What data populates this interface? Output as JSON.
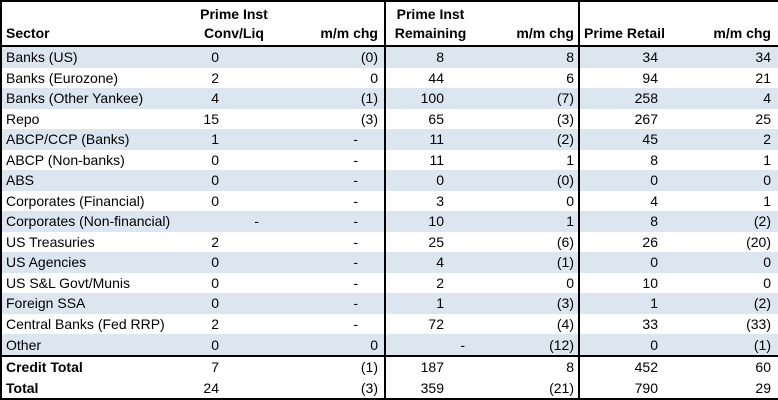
{
  "colors": {
    "stripe": "#dce6f1",
    "border": "#000000",
    "text": "#000000"
  },
  "table": {
    "columns": [
      {
        "id": "sector",
        "line1": "",
        "line2": "Sector"
      },
      {
        "id": "conv_liq",
        "line1": "Prime Inst",
        "line2": "Conv/Liq"
      },
      {
        "id": "conv_liq_chg",
        "line1": "",
        "line2": "m/m chg"
      },
      {
        "id": "remaining",
        "line1": "Prime Inst",
        "line2": "Remaining"
      },
      {
        "id": "remaining_chg",
        "line1": "",
        "line2": "m/m chg"
      },
      {
        "id": "retail",
        "line1": "",
        "line2": "Prime Retail"
      },
      {
        "id": "retail_chg",
        "line1": "",
        "line2": "m/m chg"
      }
    ],
    "rows": [
      {
        "sector": "Banks (US)",
        "values": [
          "0",
          "(0)",
          "8",
          "8",
          "34",
          "34"
        ],
        "stripe": true,
        "bold": false,
        "section_top": false
      },
      {
        "sector": "Banks (Eurozone)",
        "values": [
          "2",
          "0",
          "44",
          "6",
          "94",
          "21"
        ],
        "stripe": false,
        "bold": false,
        "section_top": false
      },
      {
        "sector": "Banks (Other Yankee)",
        "values": [
          "4",
          "(1)",
          "100",
          "(7)",
          "258",
          "4"
        ],
        "stripe": true,
        "bold": false,
        "section_top": false
      },
      {
        "sector": "Repo",
        "values": [
          "15",
          "(3)",
          "65",
          "(3)",
          "267",
          "25"
        ],
        "stripe": false,
        "bold": false,
        "section_top": false
      },
      {
        "sector": "ABCP/CCP (Banks)",
        "values": [
          "1",
          "-",
          "11",
          "(2)",
          "45",
          "2"
        ],
        "stripe": true,
        "bold": false,
        "section_top": false
      },
      {
        "sector": "ABCP (Non-banks)",
        "values": [
          "0",
          "-",
          "11",
          "1",
          "8",
          "1"
        ],
        "stripe": false,
        "bold": false,
        "section_top": false
      },
      {
        "sector": "ABS",
        "values": [
          "0",
          "-",
          "0",
          "(0)",
          "0",
          "0"
        ],
        "stripe": true,
        "bold": false,
        "section_top": false
      },
      {
        "sector": "Corporates (Financial)",
        "values": [
          "0",
          "-",
          "3",
          "0",
          "4",
          "1"
        ],
        "stripe": false,
        "bold": false,
        "section_top": false
      },
      {
        "sector": "Corporates (Non-financial)",
        "values": [
          "-",
          "-",
          "10",
          "1",
          "8",
          "(2)"
        ],
        "stripe": true,
        "bold": false,
        "section_top": false
      },
      {
        "sector": "US Treasuries",
        "values": [
          "2",
          "-",
          "25",
          "(6)",
          "26",
          "(20)"
        ],
        "stripe": false,
        "bold": false,
        "section_top": false
      },
      {
        "sector": "US Agencies",
        "values": [
          "0",
          "-",
          "4",
          "(1)",
          "0",
          "0"
        ],
        "stripe": true,
        "bold": false,
        "section_top": false
      },
      {
        "sector": "US S&L Govt/Munis",
        "values": [
          "0",
          "-",
          "2",
          "0",
          "10",
          "0"
        ],
        "stripe": false,
        "bold": false,
        "section_top": false
      },
      {
        "sector": "Foreign SSA",
        "values": [
          "0",
          "-",
          "1",
          "(3)",
          "1",
          "(2)"
        ],
        "stripe": true,
        "bold": false,
        "section_top": false
      },
      {
        "sector": "Central Banks (Fed RRP)",
        "values": [
          "2",
          "-",
          "72",
          "(4)",
          "33",
          "(33)"
        ],
        "stripe": false,
        "bold": false,
        "section_top": false
      },
      {
        "sector": "Other",
        "values": [
          "0",
          "0",
          "-",
          "(12)",
          "0",
          "(1)"
        ],
        "stripe": true,
        "bold": false,
        "section_top": false
      },
      {
        "sector": "Credit Total",
        "values": [
          "7",
          "(1)",
          "187",
          "8",
          "452",
          "60"
        ],
        "stripe": false,
        "bold": true,
        "section_top": true
      },
      {
        "sector": "Total",
        "values": [
          "24",
          "(3)",
          "359",
          "(21)",
          "790",
          "29"
        ],
        "stripe": false,
        "bold": true,
        "section_top": false
      }
    ]
  }
}
